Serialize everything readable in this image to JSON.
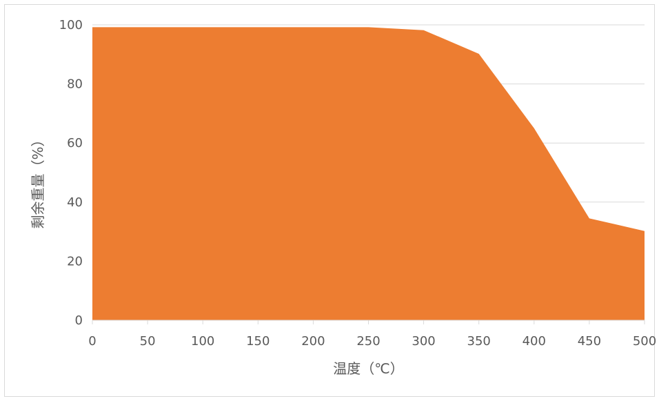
{
  "chart_data": {
    "type": "area",
    "title": "",
    "xlabel": "温度（℃）",
    "ylabel": "剩余重量（%）",
    "x": [
      0,
      50,
      100,
      150,
      200,
      250,
      300,
      350,
      400,
      450,
      500
    ],
    "series": [
      {
        "values": [
          99.2,
          99.2,
          99.2,
          99.2,
          99.2,
          99.2,
          98.2,
          90.2,
          65.0,
          34.5,
          30.2
        ]
      }
    ],
    "xlim": [
      0,
      500
    ],
    "ylim": [
      0,
      100
    ],
    "xticks": [
      0,
      50,
      100,
      150,
      200,
      250,
      300,
      350,
      400,
      450,
      500
    ],
    "yticks": [
      0,
      20,
      40,
      60,
      80,
      100
    ],
    "grid": "horizontal",
    "legend": "none",
    "colors": {
      "fill": "#ed7d31",
      "grid": "#d9d9d9",
      "text": "#595959"
    }
  }
}
